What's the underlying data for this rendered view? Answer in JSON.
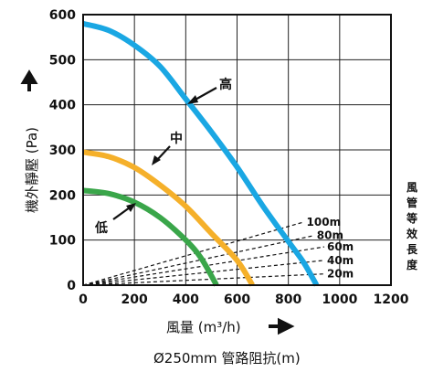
{
  "chart_data": {
    "type": "line",
    "xlabel": "風量 (m³/h)",
    "ylabel": "機外靜壓 (Pa)",
    "subtitle": "Ø250mm 管路阻抗(m)",
    "side_label": "風管等效長度",
    "xlim": [
      0,
      1200
    ],
    "ylim": [
      0,
      600
    ],
    "x_ticks": [
      "0",
      "200",
      "400",
      "600",
      "800",
      "1000",
      "1200"
    ],
    "y_ticks": [
      "0",
      "100",
      "200",
      "300",
      "400",
      "500",
      "600"
    ],
    "grid": true,
    "series": [
      {
        "name": "高",
        "color": "#1aa7e3",
        "points": [
          [
            0,
            580
          ],
          [
            100,
            565
          ],
          [
            200,
            532
          ],
          [
            300,
            485
          ],
          [
            400,
            413
          ],
          [
            500,
            340
          ],
          [
            600,
            262
          ],
          [
            700,
            176
          ],
          [
            800,
            97
          ],
          [
            860,
            50
          ],
          [
            910,
            0
          ]
        ]
      },
      {
        "name": "中",
        "color": "#f5b02a",
        "points": [
          [
            0,
            295
          ],
          [
            100,
            285
          ],
          [
            200,
            261
          ],
          [
            300,
            222
          ],
          [
            400,
            175
          ],
          [
            500,
            115
          ],
          [
            600,
            55
          ],
          [
            660,
            0
          ]
        ]
      },
      {
        "name": "低",
        "color": "#3aa64a",
        "points": [
          [
            0,
            210
          ],
          [
            100,
            203
          ],
          [
            200,
            184
          ],
          [
            300,
            150
          ],
          [
            400,
            100
          ],
          [
            460,
            60
          ],
          [
            520,
            0
          ]
        ]
      }
    ],
    "impedance_lines": [
      {
        "label": "100m",
        "end": [
          860,
          140
        ]
      },
      {
        "label": "80m",
        "end": [
          900,
          110
        ]
      },
      {
        "label": "60m",
        "end": [
          940,
          85
        ]
      },
      {
        "label": "40m",
        "end": [
          940,
          55
        ]
      },
      {
        "label": "20m",
        "end": [
          940,
          25
        ]
      }
    ]
  }
}
